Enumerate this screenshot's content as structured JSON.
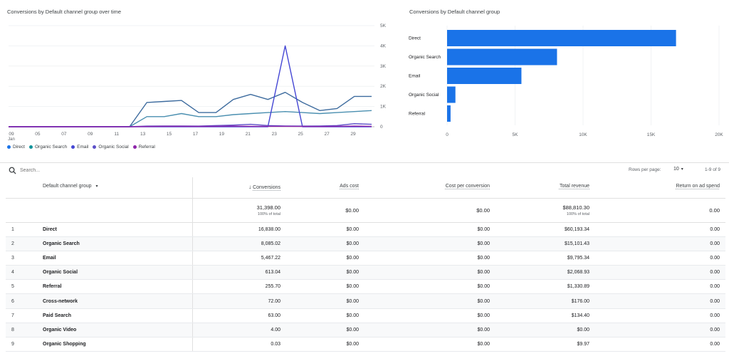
{
  "line_panel": {
    "title": "Conversions by Default channel group over time",
    "y_ticks": [
      "5K",
      "4K",
      "3K",
      "2K",
      "1K",
      "0"
    ],
    "x_ticks": [
      "09",
      "05",
      "07",
      "09",
      "11",
      "13",
      "15",
      "17",
      "19",
      "21",
      "23",
      "25",
      "27",
      "29"
    ],
    "x_sub": "Jan"
  },
  "bar_panel": {
    "title": "Conversions by Default channel group",
    "x_ticks": [
      "0",
      "5K",
      "10K",
      "15K",
      "20K"
    ]
  },
  "legend": [
    {
      "label": "Direct",
      "color": "#1a73e8"
    },
    {
      "label": "Organic Search",
      "color": "#12939a"
    },
    {
      "label": "Email",
      "color": "#4446d4"
    },
    {
      "label": "Organic Social",
      "color": "#5c4fc8"
    },
    {
      "label": "Referral",
      "color": "#8e24aa"
    }
  ],
  "chart_data": [
    {
      "type": "line",
      "title": "Conversions by Default channel group over time",
      "x": [
        "09",
        "05",
        "07",
        "09",
        "11",
        "13",
        "15",
        "16",
        "17",
        "18",
        "19",
        "20",
        "21",
        "22",
        "23",
        "24",
        "25",
        "26",
        "27",
        "28",
        "29",
        "30"
      ],
      "ylim": [
        0,
        5000
      ],
      "series": [
        {
          "name": "Direct",
          "color": "#3d6b9e",
          "values": [
            0,
            0,
            0,
            0,
            0,
            0,
            0,
            0,
            1200,
            1250,
            1300,
            700,
            700,
            1350,
            1600,
            1350,
            1700,
            1200,
            800,
            900,
            1500,
            1500
          ]
        },
        {
          "name": "Organic Search",
          "color": "#4a8fb0",
          "values": [
            0,
            0,
            0,
            0,
            0,
            0,
            0,
            0,
            500,
            500,
            650,
            500,
            500,
            600,
            650,
            700,
            750,
            700,
            650,
            700,
            750,
            800
          ]
        },
        {
          "name": "Email",
          "color": "#4446d4",
          "values": [
            0,
            0,
            0,
            0,
            0,
            0,
            0,
            0,
            0,
            0,
            0,
            0,
            0,
            0,
            0,
            0,
            4000,
            0,
            0,
            0,
            0,
            0
          ]
        },
        {
          "name": "Organic Social",
          "color": "#5c4fc8",
          "values": [
            0,
            0,
            0,
            0,
            0,
            0,
            0,
            0,
            30,
            40,
            40,
            30,
            60,
            80,
            120,
            60,
            40,
            30,
            40,
            60,
            150,
            120
          ]
        },
        {
          "name": "Referral",
          "color": "#8e24aa",
          "values": [
            0,
            0,
            0,
            0,
            0,
            0,
            0,
            0,
            10,
            20,
            20,
            15,
            20,
            30,
            20,
            20,
            20,
            15,
            10,
            20,
            30,
            20
          ]
        }
      ]
    },
    {
      "type": "bar",
      "title": "Conversions by Default channel group",
      "categories": [
        "Direct",
        "Organic Search",
        "Email",
        "Organic Social",
        "Referral"
      ],
      "values": [
        16838.0,
        8085.02,
        5467.22,
        613.04,
        255.7
      ],
      "xlim": [
        0,
        20000
      ],
      "color": "#1a73e8"
    }
  ],
  "toolbar": {
    "search_placeholder": "Search...",
    "rows_per_page_label": "Rows per page:",
    "rows_per_page_value": "10",
    "pagination": "1-9 of 9"
  },
  "table": {
    "headers": {
      "channel": "Default channel group",
      "conversions": "Conversions",
      "ads_cost": "Ads cost",
      "cpc": "Cost per conversion",
      "revenue": "Total revenue",
      "roas": "Return on ad spend"
    },
    "totals": {
      "conversions": "31,398.00",
      "conversions_sub": "100% of total",
      "ads_cost": "$0.00",
      "cpc": "$0.00",
      "revenue": "$88,810.30",
      "revenue_sub": "100% of total",
      "roas": "0.00"
    },
    "rows": [
      {
        "idx": "1",
        "channel": "Direct",
        "conversions": "16,838.00",
        "ads_cost": "$0.00",
        "cpc": "$0.00",
        "revenue": "$60,193.34",
        "roas": "0.00"
      },
      {
        "idx": "2",
        "channel": "Organic Search",
        "conversions": "8,085.02",
        "ads_cost": "$0.00",
        "cpc": "$0.00",
        "revenue": "$15,101.43",
        "roas": "0.00"
      },
      {
        "idx": "3",
        "channel": "Email",
        "conversions": "5,467.22",
        "ads_cost": "$0.00",
        "cpc": "$0.00",
        "revenue": "$9,795.34",
        "roas": "0.00"
      },
      {
        "idx": "4",
        "channel": "Organic Social",
        "conversions": "613.04",
        "ads_cost": "$0.00",
        "cpc": "$0.00",
        "revenue": "$2,068.93",
        "roas": "0.00"
      },
      {
        "idx": "5",
        "channel": "Referral",
        "conversions": "255.70",
        "ads_cost": "$0.00",
        "cpc": "$0.00",
        "revenue": "$1,330.89",
        "roas": "0.00"
      },
      {
        "idx": "6",
        "channel": "Cross-network",
        "conversions": "72.00",
        "ads_cost": "$0.00",
        "cpc": "$0.00",
        "revenue": "$176.00",
        "roas": "0.00"
      },
      {
        "idx": "7",
        "channel": "Paid Search",
        "conversions": "63.00",
        "ads_cost": "$0.00",
        "cpc": "$0.00",
        "revenue": "$134.40",
        "roas": "0.00"
      },
      {
        "idx": "8",
        "channel": "Organic Video",
        "conversions": "4.00",
        "ads_cost": "$0.00",
        "cpc": "$0.00",
        "revenue": "$0.00",
        "roas": "0.00"
      },
      {
        "idx": "9",
        "channel": "Organic Shopping",
        "conversions": "0.03",
        "ads_cost": "$0.00",
        "cpc": "$0.00",
        "revenue": "$9.97",
        "roas": "0.00"
      }
    ]
  }
}
